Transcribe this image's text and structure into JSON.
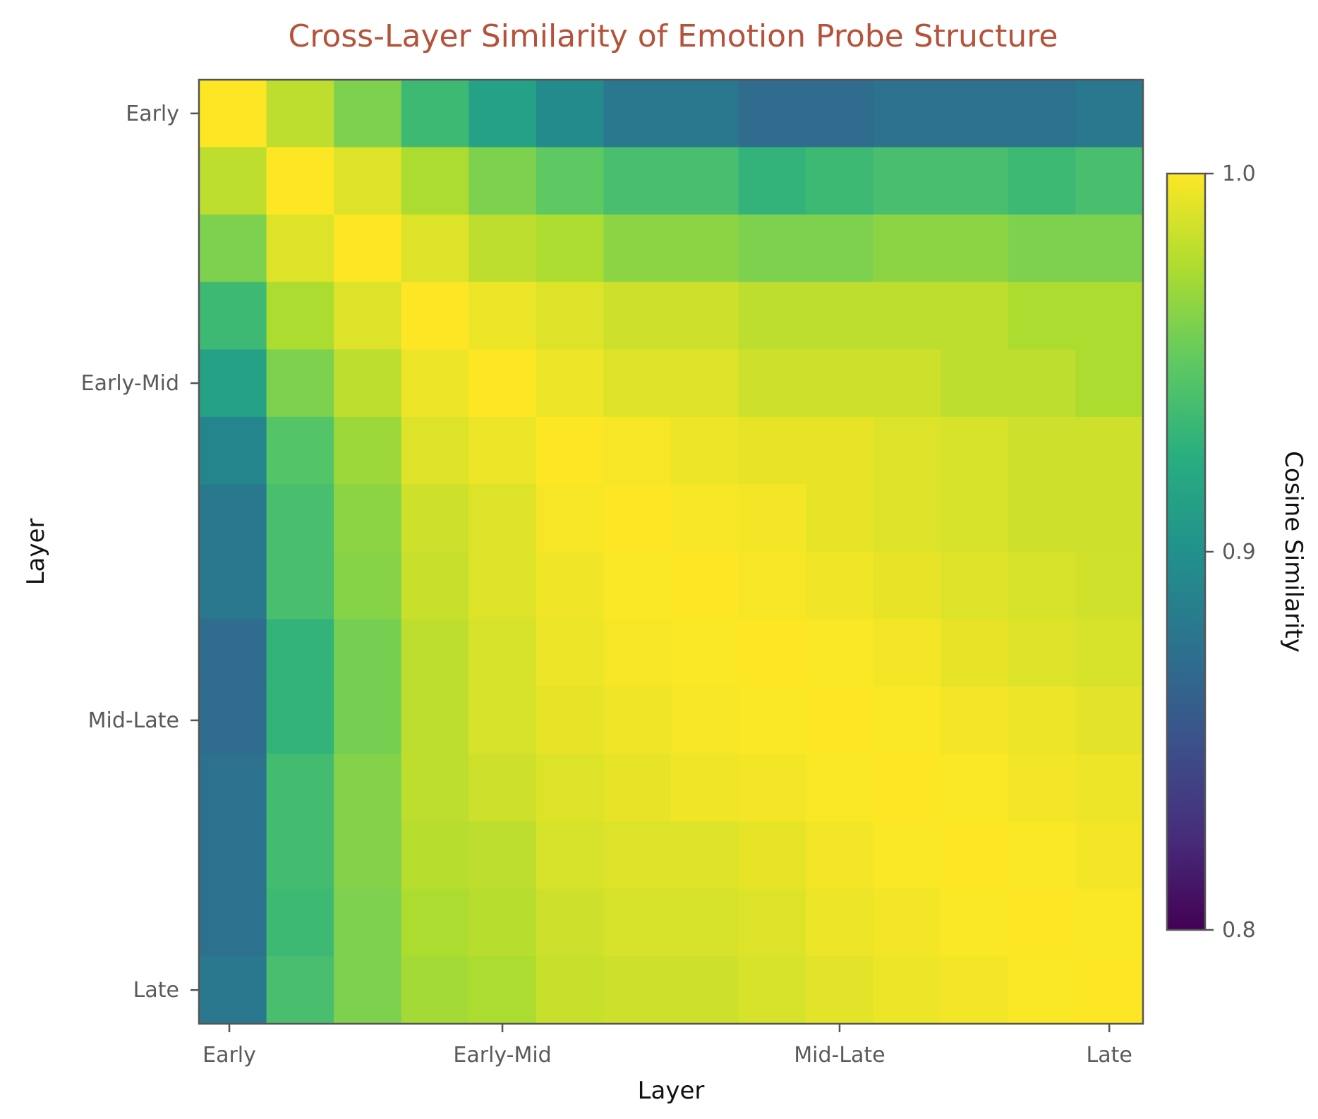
{
  "chart_data": {
    "type": "heatmap",
    "title": "Cross-Layer Similarity of Emotion Probe Structure",
    "xlabel": "Layer",
    "ylabel": "Layer",
    "x_tick_labels": [
      {
        "label": "Early",
        "index": 0.45
      },
      {
        "label": "Early-Mid",
        "index": 4.5
      },
      {
        "label": "Mid-Late",
        "index": 9.5
      },
      {
        "label": "Late",
        "index": 13.5
      }
    ],
    "y_tick_labels": [
      {
        "label": "Early",
        "index": 0.5
      },
      {
        "label": "Early-Mid",
        "index": 4.5
      },
      {
        "label": "Mid-Late",
        "index": 9.5
      },
      {
        "label": "Late",
        "index": 13.5
      }
    ],
    "colorbar": {
      "label": "Cosine Similarity",
      "range": [
        0.8,
        1.0
      ],
      "ticks": [
        "1.0",
        "0.9",
        "0.8"
      ],
      "colormap": "viridis"
    },
    "matrix": [
      [
        1.0,
        0.98,
        0.96,
        0.935,
        0.915,
        0.895,
        0.88,
        0.88,
        0.87,
        0.87,
        0.875,
        0.875,
        0.875,
        0.88
      ],
      [
        0.98,
        1.0,
        0.99,
        0.975,
        0.96,
        0.95,
        0.94,
        0.94,
        0.93,
        0.935,
        0.94,
        0.94,
        0.935,
        0.94
      ],
      [
        0.96,
        0.99,
        1.0,
        0.99,
        0.98,
        0.975,
        0.965,
        0.965,
        0.96,
        0.96,
        0.965,
        0.965,
        0.96,
        0.96
      ],
      [
        0.935,
        0.975,
        0.99,
        1.0,
        0.995,
        0.99,
        0.985,
        0.985,
        0.98,
        0.98,
        0.98,
        0.98,
        0.975,
        0.975
      ],
      [
        0.915,
        0.96,
        0.98,
        0.995,
        1.0,
        0.995,
        0.99,
        0.99,
        0.985,
        0.985,
        0.985,
        0.98,
        0.98,
        0.975
      ],
      [
        0.89,
        0.945,
        0.97,
        0.99,
        0.995,
        1.0,
        0.998,
        0.995,
        0.993,
        0.993,
        0.99,
        0.988,
        0.985,
        0.985
      ],
      [
        0.88,
        0.94,
        0.965,
        0.985,
        0.99,
        0.998,
        1.0,
        0.998,
        0.997,
        0.993,
        0.99,
        0.988,
        0.985,
        0.985
      ],
      [
        0.88,
        0.94,
        0.963,
        0.983,
        0.99,
        0.996,
        0.999,
        1.0,
        0.998,
        0.996,
        0.993,
        0.99,
        0.988,
        0.986
      ],
      [
        0.87,
        0.93,
        0.958,
        0.98,
        0.988,
        0.995,
        0.998,
        0.999,
        1.0,
        0.999,
        0.997,
        0.993,
        0.99,
        0.988
      ],
      [
        0.87,
        0.93,
        0.958,
        0.98,
        0.988,
        0.993,
        0.996,
        0.998,
        0.999,
        1.0,
        0.999,
        0.997,
        0.995,
        0.992
      ],
      [
        0.875,
        0.938,
        0.962,
        0.98,
        0.985,
        0.99,
        0.993,
        0.996,
        0.997,
        0.999,
        1.0,
        0.999,
        0.997,
        0.995
      ],
      [
        0.875,
        0.938,
        0.962,
        0.978,
        0.98,
        0.988,
        0.99,
        0.99,
        0.993,
        0.997,
        0.999,
        1.0,
        0.999,
        0.997
      ],
      [
        0.875,
        0.935,
        0.96,
        0.975,
        0.978,
        0.985,
        0.988,
        0.988,
        0.99,
        0.995,
        0.997,
        0.999,
        1.0,
        0.999
      ],
      [
        0.88,
        0.94,
        0.96,
        0.972,
        0.975,
        0.983,
        0.985,
        0.985,
        0.988,
        0.992,
        0.995,
        0.997,
        0.999,
        1.0
      ]
    ]
  }
}
